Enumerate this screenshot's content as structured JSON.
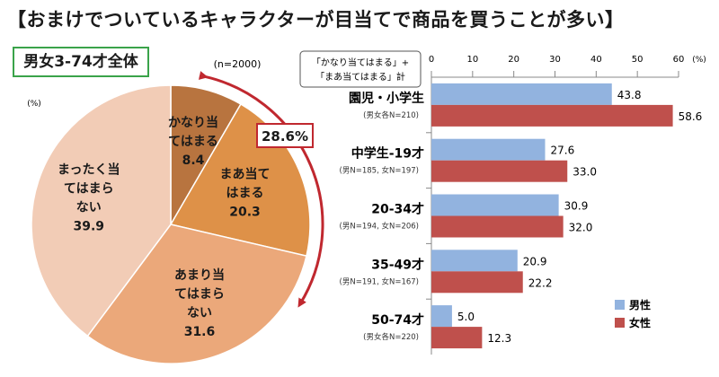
{
  "title": "【おまけでついているキャラクターが目当てで商品を買うことが多い】",
  "group_label": "男女3-74才全体",
  "colors": {
    "pie": [
      "#b8743f",
      "#de9148",
      "#eba87a",
      "#f2ccb6"
    ],
    "male": "#92b3df",
    "female": "#bf504c",
    "group_border": "#3aa34a",
    "arrow": "#c0282f"
  },
  "chart_data": [
    {
      "type": "pie",
      "n_label": "(n=2000)",
      "unit_label": "(%)",
      "slices": [
        {
          "lines": [
            "かなり当",
            "てはまる"
          ],
          "value": 8.4
        },
        {
          "lines": [
            "まあ当て",
            "はまる"
          ],
          "value": 20.3
        },
        {
          "lines": [
            "あまり当",
            "てはまら",
            "ない"
          ],
          "value": 31.6
        },
        {
          "lines": [
            "まったく当",
            "てはまら",
            "ない"
          ],
          "value": 39.9
        }
      ],
      "annotation": {
        "value": "28.6%"
      }
    },
    {
      "type": "bar",
      "orientation": "horizontal",
      "legend_title": [
        "「かなり当てはまる」+",
        "「まあ当てはまる」計"
      ],
      "unit_label": "(%)",
      "xlim": [
        0,
        60
      ],
      "xticks": [
        0,
        10,
        20,
        30,
        40,
        50,
        60
      ],
      "legend_position": "bottom-right",
      "categories": [
        {
          "label": "園児・小学生",
          "note": "(男女各N=210)"
        },
        {
          "label": "中学生-19才",
          "note": "(男N=185, 女N=197)"
        },
        {
          "label": "20-34才",
          "note": "(男N=194, 女N=206)"
        },
        {
          "label": "35-49才",
          "note": "(男N=191, 女N=167)"
        },
        {
          "label": "50-74才",
          "note": "(男女各N=220)"
        }
      ],
      "series": [
        {
          "name": "男性",
          "values": [
            43.8,
            27.6,
            30.9,
            20.9,
            5.0
          ]
        },
        {
          "name": "女性",
          "values": [
            58.6,
            33.0,
            32.0,
            22.2,
            12.3
          ]
        }
      ]
    }
  ]
}
